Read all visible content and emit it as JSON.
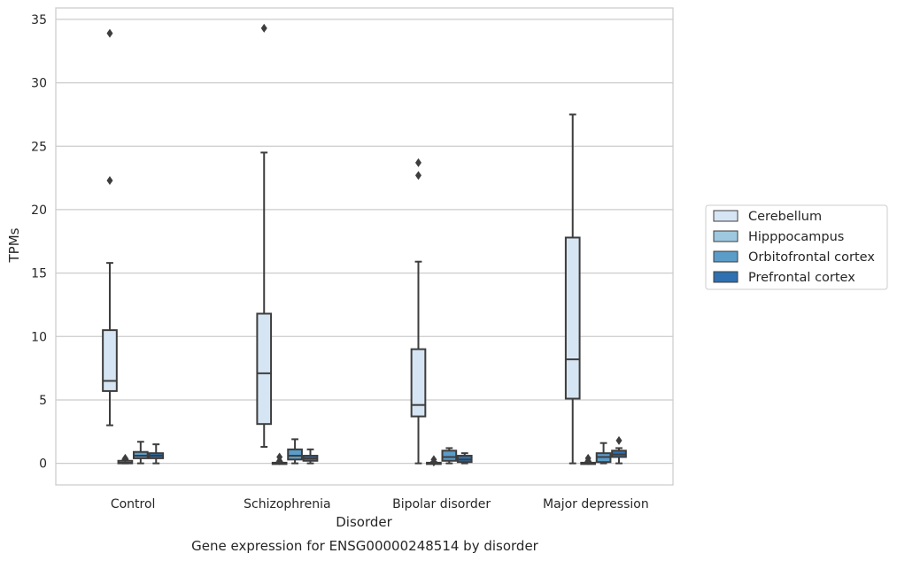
{
  "chart_data": {
    "type": "box",
    "title": "Gene expression for ENSG00000248514 by disorder",
    "xlabel": "Disorder",
    "ylabel": "TPMs",
    "ylim": [
      -1.7,
      35.9
    ],
    "yticks": [
      0,
      5,
      10,
      15,
      20,
      25,
      30,
      35
    ],
    "grid": true,
    "legend_position": "right",
    "categories": [
      "Control",
      "Schizophrenia",
      "Bipolar disorder",
      "Major depression"
    ],
    "series": [
      {
        "name": "Cerebellum",
        "color": "#d6e5f3",
        "boxes": [
          {
            "whisker_low": 3.0,
            "q1": 5.7,
            "median": 6.5,
            "q3": 10.5,
            "whisker_high": 15.8,
            "outliers": [
              22.3,
              33.9
            ]
          },
          {
            "whisker_low": 1.3,
            "q1": 3.1,
            "median": 7.1,
            "q3": 11.8,
            "whisker_high": 24.5,
            "outliers": [
              34.3
            ]
          },
          {
            "whisker_low": 0.0,
            "q1": 3.7,
            "median": 4.6,
            "q3": 9.0,
            "whisker_high": 15.9,
            "outliers": [
              22.7,
              23.7
            ]
          },
          {
            "whisker_low": 0.0,
            "q1": 5.1,
            "median": 8.2,
            "q3": 17.8,
            "whisker_high": 27.5,
            "outliers": []
          }
        ]
      },
      {
        "name": "Hipppocampus",
        "color": "#9ec8e0",
        "boxes": [
          {
            "whisker_low": 0.0,
            "q1": 0.0,
            "median": 0.05,
            "q3": 0.2,
            "whisker_high": 0.3,
            "outliers": [
              0.4
            ]
          },
          {
            "whisker_low": 0.0,
            "q1": 0.0,
            "median": 0.0,
            "q3": 0.05,
            "whisker_high": 0.1,
            "outliers": [
              0.2,
              0.5
            ]
          },
          {
            "whisker_low": 0.0,
            "q1": 0.0,
            "median": 0.0,
            "q3": 0.05,
            "whisker_high": 0.1,
            "outliers": [
              0.1,
              0.3
            ]
          },
          {
            "whisker_low": 0.0,
            "q1": 0.0,
            "median": 0.0,
            "q3": 0.05,
            "whisker_high": 0.1,
            "outliers": [
              0.2,
              0.4
            ]
          }
        ]
      },
      {
        "name": "Orbitofrontal cortex",
        "color": "#5b9cc8",
        "boxes": [
          {
            "whisker_low": 0.0,
            "q1": 0.4,
            "median": 0.6,
            "q3": 0.9,
            "whisker_high": 1.7,
            "outliers": []
          },
          {
            "whisker_low": 0.0,
            "q1": 0.3,
            "median": 0.6,
            "q3": 1.1,
            "whisker_high": 1.9,
            "outliers": []
          },
          {
            "whisker_low": 0.0,
            "q1": 0.2,
            "median": 0.5,
            "q3": 1.0,
            "whisker_high": 1.2,
            "outliers": []
          },
          {
            "whisker_low": 0.0,
            "q1": 0.1,
            "median": 0.5,
            "q3": 0.8,
            "whisker_high": 1.6,
            "outliers": []
          }
        ]
      },
      {
        "name": "Prefrontal cortex",
        "color": "#2e70b0",
        "boxes": [
          {
            "whisker_low": 0.0,
            "q1": 0.4,
            "median": 0.6,
            "q3": 0.8,
            "whisker_high": 1.5,
            "outliers": []
          },
          {
            "whisker_low": 0.0,
            "q1": 0.2,
            "median": 0.4,
            "q3": 0.6,
            "whisker_high": 1.1,
            "outliers": []
          },
          {
            "whisker_low": 0.0,
            "q1": 0.1,
            "median": 0.3,
            "q3": 0.6,
            "whisker_high": 0.8,
            "outliers": []
          },
          {
            "whisker_low": 0.0,
            "q1": 0.5,
            "median": 0.7,
            "q3": 1.0,
            "whisker_high": 1.2,
            "outliers": [
              1.8
            ]
          }
        ]
      }
    ]
  }
}
